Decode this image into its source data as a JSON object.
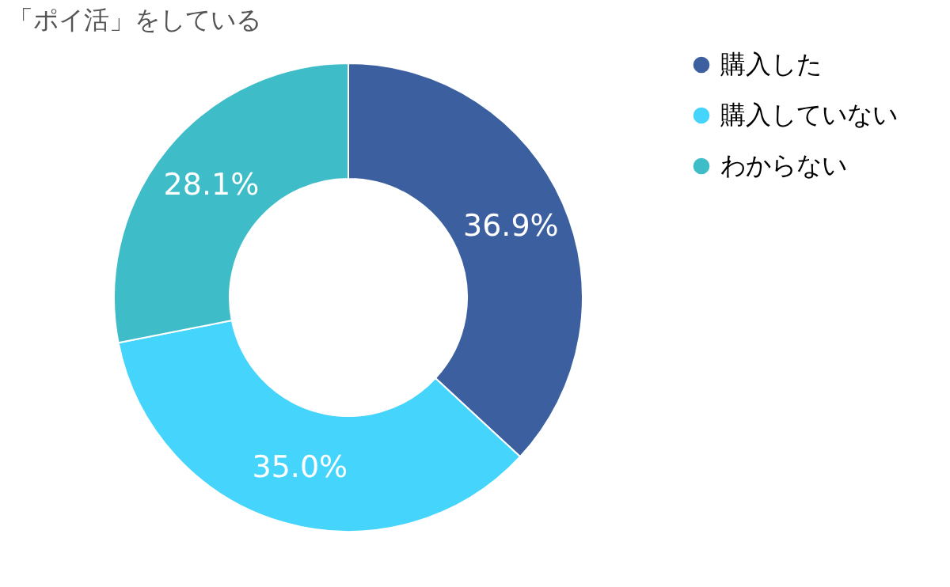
{
  "chart_data": {
    "type": "donut",
    "title": "「ポイ活」をしている",
    "categories": [
      "購入した",
      "購入していない",
      "わからない"
    ],
    "values": [
      36.9,
      35.0,
      28.1
    ],
    "colors": [
      "#3c5fa0",
      "#45d5fc",
      "#3ebcc8"
    ],
    "value_labels": [
      "36.9%",
      "35.0%",
      "28.1%"
    ],
    "legend": "top right"
  }
}
